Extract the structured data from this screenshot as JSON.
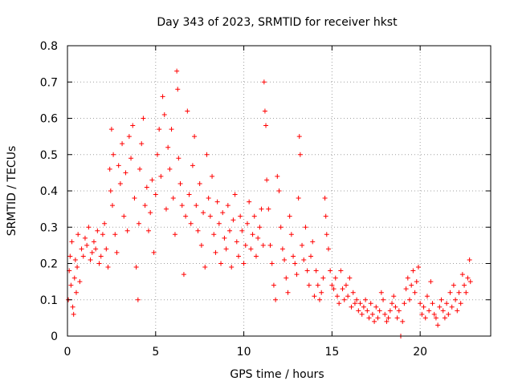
{
  "colors": {
    "series": "#ff0000",
    "axis": "#000000",
    "grid": "#a0a0a0",
    "background": "#ffffff"
  },
  "chart_data": {
    "type": "scatter",
    "marker": "plus",
    "title": "Day 343 of 2023, SRMTID for receiver hkst",
    "xlabel": "GPS time / hours",
    "ylabel": "SRMTID / TECUs",
    "xlim": [
      0,
      24
    ],
    "ylim": [
      0,
      0.8
    ],
    "xticks": [
      0,
      5,
      10,
      15,
      20
    ],
    "yticks": [
      0,
      0.1,
      0.2,
      0.3,
      0.4,
      0.5,
      0.6,
      0.7,
      0.8
    ],
    "xtick_labels": [
      "0",
      "5",
      "10",
      "15",
      "20"
    ],
    "ytick_labels": [
      "0",
      "0.1",
      "0.2",
      "0.3",
      "0.4",
      "0.5",
      "0.6",
      "0.7",
      "0.8"
    ],
    "grid": true,
    "series": [
      {
        "name": "SRMTID",
        "points": [
          [
            0.05,
            0.1
          ],
          [
            0.1,
            0.18
          ],
          [
            0.15,
            0.22
          ],
          [
            0.2,
            0.14
          ],
          [
            0.25,
            0.26
          ],
          [
            0.3,
            0.08
          ],
          [
            0.35,
            0.06
          ],
          [
            0.4,
            0.16
          ],
          [
            0.45,
            0.21
          ],
          [
            0.5,
            0.12
          ],
          [
            0.55,
            0.19
          ],
          [
            0.6,
            0.28
          ],
          [
            0.7,
            0.15
          ],
          [
            0.8,
            0.24
          ],
          [
            0.9,
            0.22
          ],
          [
            1.0,
            0.27
          ],
          [
            1.1,
            0.25
          ],
          [
            1.2,
            0.3
          ],
          [
            1.3,
            0.21
          ],
          [
            1.4,
            0.23
          ],
          [
            1.5,
            0.26
          ],
          [
            1.6,
            0.24
          ],
          [
            1.7,
            0.29
          ],
          [
            1.8,
            0.2
          ],
          [
            1.9,
            0.22
          ],
          [
            2.0,
            0.28
          ],
          [
            2.1,
            0.31
          ],
          [
            2.2,
            0.24
          ],
          [
            2.3,
            0.19
          ],
          [
            2.4,
            0.46
          ],
          [
            2.45,
            0.4
          ],
          [
            2.5,
            0.57
          ],
          [
            2.55,
            0.36
          ],
          [
            2.6,
            0.5
          ],
          [
            2.7,
            0.28
          ],
          [
            2.8,
            0.23
          ],
          [
            2.9,
            0.47
          ],
          [
            3.0,
            0.42
          ],
          [
            3.1,
            0.53
          ],
          [
            3.2,
            0.33
          ],
          [
            3.3,
            0.45
          ],
          [
            3.4,
            0.29
          ],
          [
            3.5,
            0.55
          ],
          [
            3.6,
            0.49
          ],
          [
            3.7,
            0.58
          ],
          [
            3.8,
            0.38
          ],
          [
            3.9,
            0.19
          ],
          [
            4.0,
            0.1
          ],
          [
            4.05,
            0.31
          ],
          [
            4.1,
            0.46
          ],
          [
            4.2,
            0.53
          ],
          [
            4.3,
            0.6
          ],
          [
            4.4,
            0.36
          ],
          [
            4.5,
            0.41
          ],
          [
            4.6,
            0.29
          ],
          [
            4.7,
            0.34
          ],
          [
            4.8,
            0.43
          ],
          [
            4.9,
            0.23
          ],
          [
            5.0,
            0.39
          ],
          [
            5.1,
            0.5
          ],
          [
            5.2,
            0.57
          ],
          [
            5.3,
            0.44
          ],
          [
            5.4,
            0.66
          ],
          [
            5.5,
            0.61
          ],
          [
            5.6,
            0.35
          ],
          [
            5.7,
            0.52
          ],
          [
            5.8,
            0.46
          ],
          [
            5.9,
            0.57
          ],
          [
            6.0,
            0.38
          ],
          [
            6.1,
            0.28
          ],
          [
            6.2,
            0.73
          ],
          [
            6.25,
            0.68
          ],
          [
            6.3,
            0.49
          ],
          [
            6.4,
            0.42
          ],
          [
            6.5,
            0.36
          ],
          [
            6.6,
            0.17
          ],
          [
            6.7,
            0.33
          ],
          [
            6.8,
            0.62
          ],
          [
            6.9,
            0.39
          ],
          [
            7.0,
            0.31
          ],
          [
            7.1,
            0.47
          ],
          [
            7.2,
            0.55
          ],
          [
            7.3,
            0.36
          ],
          [
            7.4,
            0.29
          ],
          [
            7.5,
            0.42
          ],
          [
            7.6,
            0.25
          ],
          [
            7.7,
            0.34
          ],
          [
            7.8,
            0.19
          ],
          [
            7.9,
            0.5
          ],
          [
            8.0,
            0.38
          ],
          [
            8.1,
            0.33
          ],
          [
            8.2,
            0.44
          ],
          [
            8.3,
            0.28
          ],
          [
            8.4,
            0.23
          ],
          [
            8.5,
            0.37
          ],
          [
            8.6,
            0.31
          ],
          [
            8.7,
            0.2
          ],
          [
            8.8,
            0.34
          ],
          [
            8.9,
            0.27
          ],
          [
            9.0,
            0.24
          ],
          [
            9.1,
            0.36
          ],
          [
            9.2,
            0.29
          ],
          [
            9.3,
            0.19
          ],
          [
            9.4,
            0.32
          ],
          [
            9.5,
            0.39
          ],
          [
            9.6,
            0.26
          ],
          [
            9.7,
            0.22
          ],
          [
            9.8,
            0.33
          ],
          [
            9.9,
            0.29
          ],
          [
            10.0,
            0.2
          ],
          [
            10.1,
            0.25
          ],
          [
            10.2,
            0.31
          ],
          [
            10.3,
            0.37
          ],
          [
            10.4,
            0.24
          ],
          [
            10.5,
            0.28
          ],
          [
            10.6,
            0.33
          ],
          [
            10.7,
            0.22
          ],
          [
            10.8,
            0.27
          ],
          [
            10.9,
            0.3
          ],
          [
            11.0,
            0.35
          ],
          [
            11.1,
            0.25
          ],
          [
            11.15,
            0.7
          ],
          [
            11.2,
            0.62
          ],
          [
            11.25,
            0.58
          ],
          [
            11.3,
            0.43
          ],
          [
            11.4,
            0.35
          ],
          [
            11.5,
            0.25
          ],
          [
            11.6,
            0.2
          ],
          [
            11.7,
            0.14
          ],
          [
            11.8,
            0.1
          ],
          [
            11.9,
            0.44
          ],
          [
            12.0,
            0.4
          ],
          [
            12.1,
            0.3
          ],
          [
            12.2,
            0.24
          ],
          [
            12.3,
            0.21
          ],
          [
            12.4,
            0.16
          ],
          [
            12.5,
            0.12
          ],
          [
            12.6,
            0.33
          ],
          [
            12.7,
            0.28
          ],
          [
            12.8,
            0.22
          ],
          [
            12.9,
            0.2
          ],
          [
            13.0,
            0.17
          ],
          [
            13.1,
            0.38
          ],
          [
            13.15,
            0.55
          ],
          [
            13.2,
            0.5
          ],
          [
            13.3,
            0.25
          ],
          [
            13.4,
            0.21
          ],
          [
            13.5,
            0.3
          ],
          [
            13.6,
            0.18
          ],
          [
            13.7,
            0.14
          ],
          [
            13.8,
            0.22
          ],
          [
            13.9,
            0.26
          ],
          [
            14.0,
            0.11
          ],
          [
            14.1,
            0.18
          ],
          [
            14.2,
            0.14
          ],
          [
            14.3,
            0.1
          ],
          [
            14.4,
            0.12
          ],
          [
            14.5,
            0.16
          ],
          [
            14.6,
            0.38
          ],
          [
            14.65,
            0.33
          ],
          [
            14.7,
            0.28
          ],
          [
            14.8,
            0.24
          ],
          [
            14.9,
            0.18
          ],
          [
            15.0,
            0.14
          ],
          [
            15.1,
            0.13
          ],
          [
            15.2,
            0.16
          ],
          [
            15.3,
            0.11
          ],
          [
            15.4,
            0.09
          ],
          [
            15.5,
            0.18
          ],
          [
            15.6,
            0.13
          ],
          [
            15.7,
            0.1
          ],
          [
            15.8,
            0.14
          ],
          [
            15.9,
            0.11
          ],
          [
            16.0,
            0.16
          ],
          [
            16.1,
            0.08
          ],
          [
            16.2,
            0.12
          ],
          [
            16.3,
            0.09
          ],
          [
            16.4,
            0.1
          ],
          [
            16.5,
            0.07
          ],
          [
            16.6,
            0.09
          ],
          [
            16.7,
            0.06
          ],
          [
            16.8,
            0.08
          ],
          [
            16.9,
            0.1
          ],
          [
            17.0,
            0.07
          ],
          [
            17.1,
            0.05
          ],
          [
            17.2,
            0.09
          ],
          [
            17.3,
            0.06
          ],
          [
            17.4,
            0.04
          ],
          [
            17.5,
            0.08
          ],
          [
            17.6,
            0.05
          ],
          [
            17.7,
            0.07
          ],
          [
            17.8,
            0.12
          ],
          [
            17.9,
            0.1
          ],
          [
            18.0,
            0.06
          ],
          [
            18.1,
            0.04
          ],
          [
            18.2,
            0.05
          ],
          [
            18.3,
            0.07
          ],
          [
            18.4,
            0.09
          ],
          [
            18.5,
            0.11
          ],
          [
            18.6,
            0.08
          ],
          [
            18.7,
            0.05
          ],
          [
            18.8,
            0.07
          ],
          [
            18.9,
            0.0
          ],
          [
            19.0,
            0.04
          ],
          [
            19.1,
            0.09
          ],
          [
            19.2,
            0.13
          ],
          [
            19.3,
            0.16
          ],
          [
            19.4,
            0.1
          ],
          [
            19.5,
            0.14
          ],
          [
            19.6,
            0.18
          ],
          [
            19.7,
            0.12
          ],
          [
            19.8,
            0.15
          ],
          [
            19.9,
            0.19
          ],
          [
            20.0,
            0.09
          ],
          [
            20.1,
            0.06
          ],
          [
            20.2,
            0.08
          ],
          [
            20.3,
            0.05
          ],
          [
            20.4,
            0.11
          ],
          [
            20.5,
            0.07
          ],
          [
            20.6,
            0.15
          ],
          [
            20.7,
            0.09
          ],
          [
            20.8,
            0.06
          ],
          [
            20.9,
            0.05
          ],
          [
            21.0,
            0.03
          ],
          [
            21.1,
            0.08
          ],
          [
            21.2,
            0.1
          ],
          [
            21.3,
            0.07
          ],
          [
            21.4,
            0.05
          ],
          [
            21.5,
            0.09
          ],
          [
            21.6,
            0.06
          ],
          [
            21.7,
            0.12
          ],
          [
            21.8,
            0.08
          ],
          [
            21.9,
            0.14
          ],
          [
            22.0,
            0.1
          ],
          [
            22.1,
            0.07
          ],
          [
            22.2,
            0.12
          ],
          [
            22.3,
            0.09
          ],
          [
            22.4,
            0.17
          ],
          [
            22.5,
            0.14
          ],
          [
            22.6,
            0.12
          ],
          [
            22.7,
            0.16
          ],
          [
            22.8,
            0.21
          ],
          [
            22.85,
            0.15
          ]
        ]
      }
    ]
  }
}
